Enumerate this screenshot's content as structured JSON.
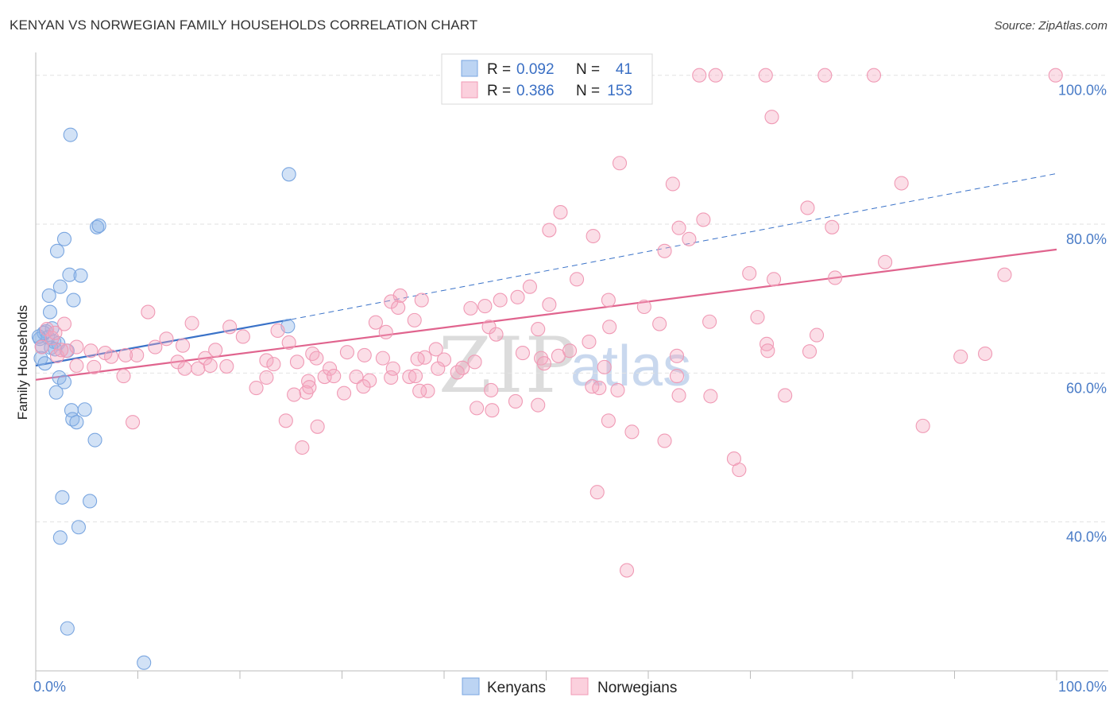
{
  "header": {
    "title": "KENYAN VS NORWEGIAN FAMILY HOUSEHOLDS CORRELATION CHART",
    "source": "Source: ZipAtlas.com"
  },
  "watermark": {
    "part1": "ZIP",
    "part2": "atlas"
  },
  "legend": {
    "r_label": "R =",
    "n_label": "N =",
    "rows": [
      {
        "name": "Kenyans",
        "r": "0.092",
        "n": "41",
        "color": "#8ab4e8"
      },
      {
        "name": "Norwegians",
        "r": "0.386",
        "n": "153",
        "color": "#f4a9c0"
      }
    ]
  },
  "bottom_legend": {
    "kenyans": "Kenyans",
    "norwegians": "Norwegians"
  },
  "chart_data": {
    "type": "scatter",
    "title": "KENYAN VS NORWEGIAN FAMILY HOUSEHOLDS CORRELATION CHART",
    "xlabel": "",
    "ylabel": "Family Households",
    "xlim": [
      0,
      100
    ],
    "ylim": [
      20,
      102
    ],
    "x_tick_labels": [
      "0.0%",
      "100.0%"
    ],
    "y_ticks": [
      40,
      60,
      80,
      100
    ],
    "y_tick_labels": [
      "40.0%",
      "60.0%",
      "80.0%",
      "100.0%"
    ],
    "grid": true,
    "series": [
      {
        "name": "Kenyans",
        "color": "#8ab4e8",
        "line_color": "#3a72c8",
        "trend": {
          "x0": 0,
          "y0": 61.0,
          "x1": 25,
          "y1": 67.2,
          "dashed_to_x": 100,
          "dashed_to_y": 86.8
        },
        "points": [
          [
            3.4,
            92.0
          ],
          [
            24.8,
            86.7
          ],
          [
            6.0,
            79.6
          ],
          [
            6.2,
            79.8
          ],
          [
            2.8,
            78.0
          ],
          [
            2.1,
            76.4
          ],
          [
            3.3,
            73.2
          ],
          [
            4.4,
            73.1
          ],
          [
            2.4,
            71.6
          ],
          [
            1.3,
            70.4
          ],
          [
            3.7,
            69.8
          ],
          [
            1.4,
            68.2
          ],
          [
            24.7,
            66.3
          ],
          [
            1.6,
            66.0
          ],
          [
            0.8,
            65.4
          ],
          [
            1.0,
            65.6
          ],
          [
            1.2,
            64.8
          ],
          [
            0.4,
            64.6
          ],
          [
            1.8,
            64.2
          ],
          [
            2.2,
            64.0
          ],
          [
            0.6,
            63.6
          ],
          [
            1.5,
            63.4
          ],
          [
            1.9,
            63.2
          ],
          [
            3.1,
            63.0
          ],
          [
            0.5,
            62.0
          ],
          [
            0.9,
            61.3
          ],
          [
            2.3,
            59.4
          ],
          [
            2.8,
            58.8
          ],
          [
            2.0,
            57.4
          ],
          [
            3.5,
            55.0
          ],
          [
            4.8,
            55.1
          ],
          [
            3.6,
            53.8
          ],
          [
            4.0,
            53.4
          ],
          [
            5.8,
            51.0
          ],
          [
            2.6,
            43.3
          ],
          [
            5.3,
            42.8
          ],
          [
            4.2,
            39.3
          ],
          [
            2.4,
            37.9
          ],
          [
            3.1,
            25.7
          ],
          [
            10.6,
            21.1
          ],
          [
            0.3,
            64.9
          ]
        ]
      },
      {
        "name": "Norwegians",
        "color": "#f4a9c0",
        "line_color": "#e0648e",
        "trend": {
          "x0": 0,
          "y0": 59.1,
          "x1": 100,
          "y1": 76.6
        },
        "points": [
          [
            65.0,
            100
          ],
          [
            66.6,
            100
          ],
          [
            71.5,
            100
          ],
          [
            77.3,
            100
          ],
          [
            82.1,
            100
          ],
          [
            99.9,
            100
          ],
          [
            72.1,
            94.4
          ],
          [
            57.2,
            88.2
          ],
          [
            62.4,
            85.4
          ],
          [
            84.8,
            85.5
          ],
          [
            51.4,
            81.6
          ],
          [
            75.6,
            82.2
          ],
          [
            65.4,
            80.6
          ],
          [
            63.0,
            79.5
          ],
          [
            78.0,
            79.6
          ],
          [
            50.3,
            79.2
          ],
          [
            54.6,
            78.4
          ],
          [
            64.0,
            78.0
          ],
          [
            61.6,
            76.4
          ],
          [
            83.2,
            74.9
          ],
          [
            35.7,
            70.4
          ],
          [
            53.0,
            72.6
          ],
          [
            69.9,
            73.4
          ],
          [
            94.9,
            73.2
          ],
          [
            78.3,
            72.8
          ],
          [
            72.3,
            72.6
          ],
          [
            48.4,
            71.6
          ],
          [
            47.2,
            70.2
          ],
          [
            34.8,
            69.6
          ],
          [
            45.5,
            69.8
          ],
          [
            37.8,
            69.8
          ],
          [
            44.0,
            69.0
          ],
          [
            50.3,
            69.2
          ],
          [
            56.1,
            69.8
          ],
          [
            35.5,
            68.8
          ],
          [
            59.6,
            68.9
          ],
          [
            42.6,
            68.7
          ],
          [
            11.0,
            68.2
          ],
          [
            70.7,
            67.5
          ],
          [
            37.1,
            67.1
          ],
          [
            66.0,
            66.9
          ],
          [
            44.4,
            66.2
          ],
          [
            56.2,
            66.2
          ],
          [
            61.1,
            66.6
          ],
          [
            19.0,
            66.2
          ],
          [
            23.7,
            65.7
          ],
          [
            49.2,
            65.9
          ],
          [
            15.3,
            66.7
          ],
          [
            33.3,
            66.8
          ],
          [
            76.5,
            65.1
          ],
          [
            71.6,
            63.9
          ],
          [
            71.7,
            63.0
          ],
          [
            93.0,
            62.6
          ],
          [
            30.5,
            62.8
          ],
          [
            49.5,
            62.0
          ],
          [
            62.8,
            62.3
          ],
          [
            16.6,
            62.0
          ],
          [
            27.1,
            62.6
          ],
          [
            9.9,
            62.4
          ],
          [
            7.4,
            62.2
          ],
          [
            3.0,
            63.0
          ],
          [
            4.0,
            63.5
          ],
          [
            2.1,
            62.3
          ],
          [
            5.4,
            63.0
          ],
          [
            14.4,
            63.7
          ],
          [
            20.3,
            64.9
          ],
          [
            24.8,
            64.1
          ],
          [
            12.8,
            64.6
          ],
          [
            4.0,
            61.0
          ],
          [
            5.7,
            60.8
          ],
          [
            8.6,
            59.6
          ],
          [
            14.6,
            60.6
          ],
          [
            17.1,
            61.0
          ],
          [
            18.7,
            60.9
          ],
          [
            15.9,
            60.6
          ],
          [
            22.6,
            59.4
          ],
          [
            28.3,
            59.5
          ],
          [
            26.7,
            58.9
          ],
          [
            22.6,
            61.7
          ],
          [
            25.6,
            61.5
          ],
          [
            32.2,
            62.4
          ],
          [
            27.5,
            62.0
          ],
          [
            34.0,
            62.0
          ],
          [
            28.8,
            60.6
          ],
          [
            31.4,
            59.5
          ],
          [
            38.1,
            62.1
          ],
          [
            40.0,
            61.8
          ],
          [
            43.0,
            61.5
          ],
          [
            34.8,
            59.4
          ],
          [
            36.6,
            59.5
          ],
          [
            37.4,
            61.9
          ],
          [
            39.2,
            63.2
          ],
          [
            35.0,
            60.6
          ],
          [
            41.8,
            60.7
          ],
          [
            49.8,
            61.3
          ],
          [
            51.2,
            62.3
          ],
          [
            55.7,
            60.8
          ],
          [
            54.2,
            64.2
          ],
          [
            62.8,
            59.6
          ],
          [
            44.6,
            57.7
          ],
          [
            38.4,
            57.6
          ],
          [
            32.7,
            59.0
          ],
          [
            26.5,
            57.4
          ],
          [
            21.6,
            58.0
          ],
          [
            30.2,
            57.3
          ],
          [
            32.1,
            58.2
          ],
          [
            26.8,
            58.1
          ],
          [
            25.3,
            57.1
          ],
          [
            54.5,
            58.2
          ],
          [
            57.0,
            57.7
          ],
          [
            63.0,
            57.0
          ],
          [
            55.2,
            58.0
          ],
          [
            49.2,
            55.7
          ],
          [
            44.7,
            55.0
          ],
          [
            37.6,
            57.6
          ],
          [
            9.5,
            53.4
          ],
          [
            24.5,
            53.6
          ],
          [
            27.6,
            52.8
          ],
          [
            26.1,
            50.0
          ],
          [
            56.1,
            53.6
          ],
          [
            58.4,
            52.1
          ],
          [
            61.6,
            50.9
          ],
          [
            68.4,
            48.5
          ],
          [
            68.9,
            47.0
          ],
          [
            86.9,
            52.9
          ],
          [
            73.4,
            57.0
          ],
          [
            90.6,
            62.2
          ],
          [
            75.8,
            62.9
          ],
          [
            66.1,
            56.9
          ],
          [
            55.0,
            44.0
          ],
          [
            57.9,
            33.5
          ],
          [
            47.0,
            56.2
          ],
          [
            43.2,
            55.3
          ],
          [
            29.2,
            59.6
          ],
          [
            37.2,
            59.6
          ],
          [
            47.7,
            62.7
          ],
          [
            45.1,
            65.2
          ],
          [
            34.3,
            65.5
          ],
          [
            52.3,
            63.0
          ],
          [
            39.4,
            60.6
          ],
          [
            41.3,
            60.1
          ],
          [
            17.6,
            63.1
          ],
          [
            23.3,
            61.2
          ],
          [
            11.7,
            63.5
          ],
          [
            13.9,
            61.5
          ],
          [
            6.8,
            62.7
          ],
          [
            8.8,
            62.4
          ],
          [
            1.1,
            65.9
          ],
          [
            1.6,
            64.7
          ],
          [
            2.8,
            66.6
          ],
          [
            1.9,
            65.4
          ],
          [
            0.6,
            63.5
          ],
          [
            2.5,
            63.1
          ]
        ]
      }
    ]
  }
}
